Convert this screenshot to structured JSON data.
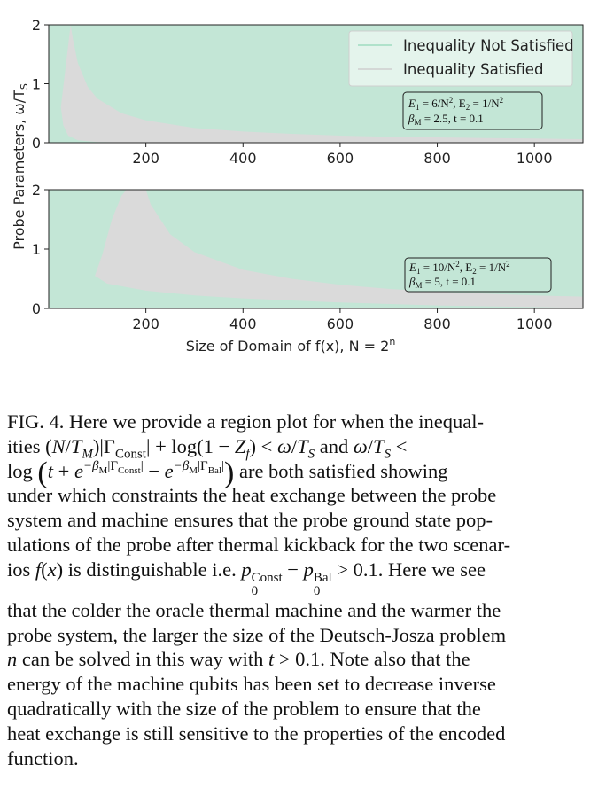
{
  "figure": {
    "ylabel": "Probe Parameters, ω/T",
    "ylabel_sub": "S",
    "xlabel": "Size of Domain of f(x), N = 2",
    "xlabel_sup": "n",
    "colors": {
      "not_satisfied": "#c3e6d6",
      "satisfied": "#dadada",
      "legend_line_not": "#9fdcc0",
      "legend_line_sat": "#cfcfcf"
    },
    "legend": {
      "not_satisfied": "Inequality Not Satisfied",
      "satisfied": "Inequality Satisfied"
    }
  },
  "chart_data": [
    {
      "type": "area",
      "panel": "top",
      "x_ticks": [
        "200",
        "400",
        "600",
        "800",
        "1000"
      ],
      "y_ticks": [
        "0",
        "1",
        "2"
      ],
      "xlim": [
        0,
        1100
      ],
      "ylim": [
        0,
        2
      ],
      "legend_placement": "top-right",
      "series": [
        {
          "name": "Inequality Not Satisfied",
          "color": "#c3e6d6"
        },
        {
          "name": "Inequality Satisfied",
          "color": "#dadada",
          "upper_x": [
            45,
            50,
            60,
            80,
            100,
            150,
            200,
            300,
            400,
            500,
            600,
            700,
            800,
            900,
            1000,
            1100
          ],
          "upper_y": [
            2.0,
            1.75,
            1.35,
            0.95,
            0.75,
            0.5,
            0.38,
            0.25,
            0.19,
            0.15,
            0.12,
            0.1,
            0.09,
            0.08,
            0.07,
            0.06
          ],
          "lower_x": [
            25,
            30,
            40,
            60,
            100,
            200,
            1100
          ],
          "lower_y": [
            0.6,
            0.3,
            0.12,
            0.04,
            0.01,
            0.0,
            0.0
          ]
        }
      ],
      "annotation": {
        "l1a": "E",
        "l1a_sub": "1",
        "l1b": " = 6/N",
        "l1b_sup": "2",
        "l1c": ", E",
        "l1c_sub": "2",
        "l1d": " = 1/N",
        "l1d_sup": "2",
        "l2a": "β",
        "l2a_sub": "M",
        "l2b": " = 2.5, t = 0.1"
      }
    },
    {
      "type": "area",
      "panel": "bottom",
      "x_ticks": [
        "200",
        "400",
        "600",
        "800",
        "1000"
      ],
      "y_ticks": [
        "0",
        "1",
        "2"
      ],
      "xlim": [
        0,
        1100
      ],
      "ylim": [
        0,
        2
      ],
      "series": [
        {
          "name": "Inequality Not Satisfied",
          "color": "#c3e6d6"
        },
        {
          "name": "Inequality Satisfied",
          "color": "#dadada",
          "upper_x": [
            95,
            110,
            130,
            150,
            160,
            200,
            210,
            250,
            300,
            400,
            500,
            600,
            700,
            800,
            900,
            1000,
            1100
          ],
          "upper_y": [
            0.55,
            0.9,
            1.5,
            1.9,
            2.0,
            2.0,
            1.75,
            1.25,
            0.95,
            0.65,
            0.5,
            0.4,
            0.33,
            0.28,
            0.25,
            0.22,
            0.2
          ],
          "lower_x": [
            95,
            120,
            200,
            300,
            400,
            600,
            800,
            1100
          ],
          "lower_y": [
            0.55,
            0.42,
            0.3,
            0.22,
            0.17,
            0.1,
            0.05,
            0.01
          ]
        }
      ],
      "annotation": {
        "l1a": "E",
        "l1a_sub": "1",
        "l1b": " = 10/N",
        "l1b_sup": "2",
        "l1c": ", E",
        "l1c_sub": "2",
        "l1d": " = 1/N",
        "l1d_sup": "2",
        "l2a": "β",
        "l2a_sub": "M",
        "l2b": " = 5, t = 0.1"
      }
    }
  ],
  "caption": {
    "p01": "FIG. 4. Here we provide a region plot for when the inequal-",
    "p02a": "ities (",
    "p02b": "N",
    "p02c": "/",
    "p02d": "T",
    "p02e": "M",
    "p02f": ")|Γ",
    "p02g": "Const",
    "p02h": "| + log(1 − ",
    "p02i": "Z",
    "p02j": "f",
    "p02k": ") < ",
    "p02l": "ω",
    "p02m": "/",
    "p02n": "T",
    "p02o": "S",
    "p02p": " and ",
    "p02q": "ω",
    "p02r": "/",
    "p02s": "T",
    "p02t": "S",
    "p02u": " <",
    "p03a": "log ",
    "p03b": "(",
    "p03c": "t",
    "p03d": " + ",
    "p03e": "e",
    "p03f": "−β",
    "p03g": "M",
    "p03h": "|Γ",
    "p03i": "Const",
    "p03j": "|",
    "p03k": " − ",
    "p03l": "e",
    "p03m": "−β",
    "p03n": "M",
    "p03o": "|Γ",
    "p03p": "Bal",
    "p03q": "|",
    "p03r": ")",
    "p03s": " are both satisfied showing",
    "p04": "under which constraints the heat exchange between the probe",
    "p05": "system and machine ensures that the probe ground state pop-",
    "p06": "ulations of the probe after thermal kickback for the two scenar-",
    "p07a": "ios ",
    "p07b": "f",
    "p07c": "(",
    "p07d": "x",
    "p07e": ") is distinguishable i.e. ",
    "p07f": "p",
    "p07g": "Const",
    "p07h": "0",
    "p07i": " − ",
    "p07j": "p",
    "p07k": "Bal",
    "p07l": "0",
    "p07m": " > 0.1. Here we see",
    "p08": "that the colder the oracle thermal machine and the warmer the",
    "p09": "probe system, the larger the size of the Deutsch-Josza problem",
    "p10a": "n",
    "p10b": " can be solved in this way with ",
    "p10c": "t",
    "p10d": " > 0.1. Note also that the",
    "p11": "energy of the machine qubits has been set to decrease inverse",
    "p12": "quadratically with the size of the problem to ensure that the",
    "p13": "heat exchange is still sensitive to the properties of the encoded",
    "p14": "function."
  }
}
